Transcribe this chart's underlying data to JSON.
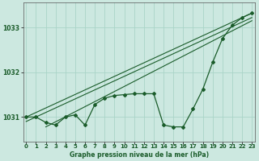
{
  "title": "Graphe pression niveau de la mer (hPa)",
  "bg_color": "#cce8e0",
  "grid_color": "#aad4c8",
  "line_color": "#1a5c2a",
  "x_ticks": [
    0,
    1,
    2,
    3,
    4,
    5,
    6,
    7,
    8,
    9,
    10,
    11,
    12,
    13,
    14,
    15,
    16,
    17,
    18,
    19,
    20,
    21,
    22,
    23
  ],
  "y_ticks": [
    1031,
    1032,
    1033
  ],
  "ylim": [
    1030.45,
    1033.55
  ],
  "xlim": [
    -0.3,
    23.3
  ],
  "series1": [
    1031.0,
    1031.0,
    1030.88,
    1030.82,
    1031.0,
    1031.05,
    1030.82,
    1031.28,
    1031.42,
    1031.48,
    1031.5,
    1031.52,
    1031.52,
    1031.52,
    1030.82,
    1030.78,
    1030.78,
    1031.18,
    1031.62,
    1032.22,
    1032.75,
    1033.05,
    1033.22,
    1033.32
  ],
  "trend_lines": [
    [
      [
        0,
        1031.0
      ],
      [
        23,
        1033.32
      ]
    ],
    [
      [
        0,
        1030.9
      ],
      [
        23,
        1033.22
      ]
    ],
    [
      [
        2,
        1030.78
      ],
      [
        23,
        1033.15
      ]
    ]
  ]
}
